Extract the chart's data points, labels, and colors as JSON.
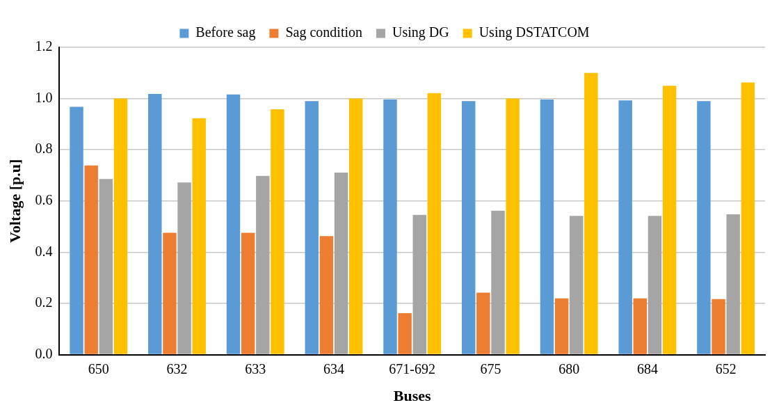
{
  "chart_data": {
    "type": "bar",
    "xlabel": "Buses",
    "ylabel": "Voltage [p.u]",
    "categories": [
      "650",
      "632",
      "633",
      "634",
      "671-692",
      "675",
      "680",
      "684",
      "652"
    ],
    "series": [
      {
        "name": "Before sag",
        "color": "#5b9bd5",
        "values": [
          0.968,
          1.018,
          1.016,
          0.99,
          0.996,
          0.99,
          0.996,
          0.993,
          0.99
        ]
      },
      {
        "name": "Sag condition",
        "color": "#ed7d31",
        "values": [
          0.739,
          0.476,
          0.476,
          0.463,
          0.162,
          0.242,
          0.22,
          0.22,
          0.217
        ]
      },
      {
        "name": "Using DG",
        "color": "#a5a5a5",
        "values": [
          0.686,
          0.672,
          0.698,
          0.711,
          0.546,
          0.562,
          0.542,
          0.542,
          0.548
        ]
      },
      {
        "name": "Using DSTATCOM",
        "color": "#ffc000",
        "values": [
          1.0,
          0.923,
          0.958,
          1.0,
          1.021,
          1.0,
          1.1,
          1.05,
          1.063
        ]
      }
    ],
    "ylim": [
      0,
      1.2
    ],
    "yticks": [
      {
        "value": 0,
        "label": "0.0"
      },
      {
        "value": 0.2,
        "label": "0.2"
      },
      {
        "value": 0.4,
        "label": "0.4"
      },
      {
        "value": 0.6,
        "label": "0.6"
      },
      {
        "value": 0.8,
        "label": "0.8"
      },
      {
        "value": 1,
        "label": "1.0"
      },
      {
        "value": 1.2,
        "label": "1.2"
      }
    ],
    "grid": "y",
    "legend": "top"
  }
}
